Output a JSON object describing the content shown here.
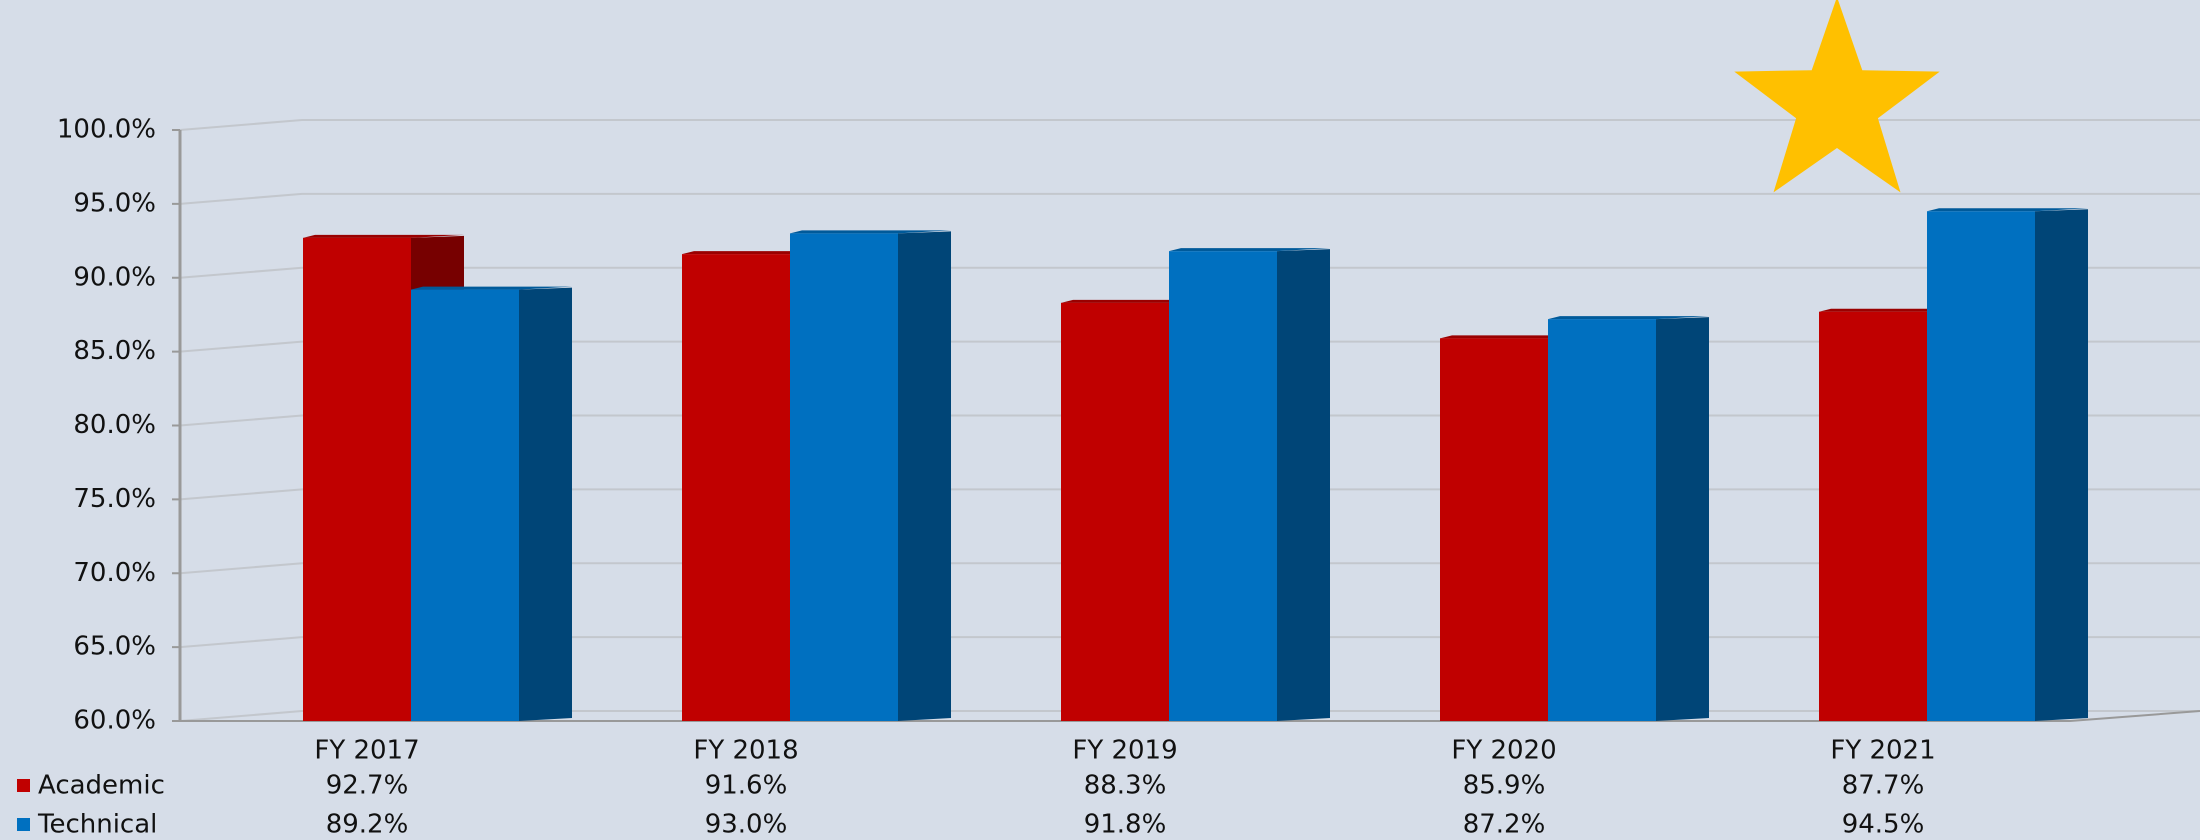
{
  "chart_data": {
    "type": "bar",
    "categories": [
      "FY 2017",
      "FY 2018",
      "FY 2019",
      "FY 2020",
      "FY 2021"
    ],
    "series": [
      {
        "name": "Academic",
        "color": "#c00000",
        "values": [
          92.7,
          91.6,
          88.3,
          85.9,
          87.7
        ],
        "value_labels": [
          "92.7%",
          "91.6%",
          "88.3%",
          "85.9%",
          "87.7%"
        ]
      },
      {
        "name": "Technical",
        "color": "#0070c0",
        "values": [
          89.2,
          93.0,
          91.8,
          87.2,
          94.5
        ],
        "value_labels": [
          "89.2%",
          "93.0%",
          "91.8%",
          "87.2%",
          "94.5%"
        ]
      }
    ],
    "ylim": [
      60,
      100
    ],
    "yticks": [
      {
        "value": 60,
        "label": "60.0%"
      },
      {
        "value": 65,
        "label": "65.0%"
      },
      {
        "value": 70,
        "label": "70.0%"
      },
      {
        "value": 75,
        "label": "75.0%"
      },
      {
        "value": 80,
        "label": "80.0%"
      },
      {
        "value": 85,
        "label": "85.0%"
      },
      {
        "value": 90,
        "label": "90.0%"
      },
      {
        "value": 95,
        "label": "95.0%"
      },
      {
        "value": 100,
        "label": "100.0%"
      }
    ],
    "grid": true
  }
}
